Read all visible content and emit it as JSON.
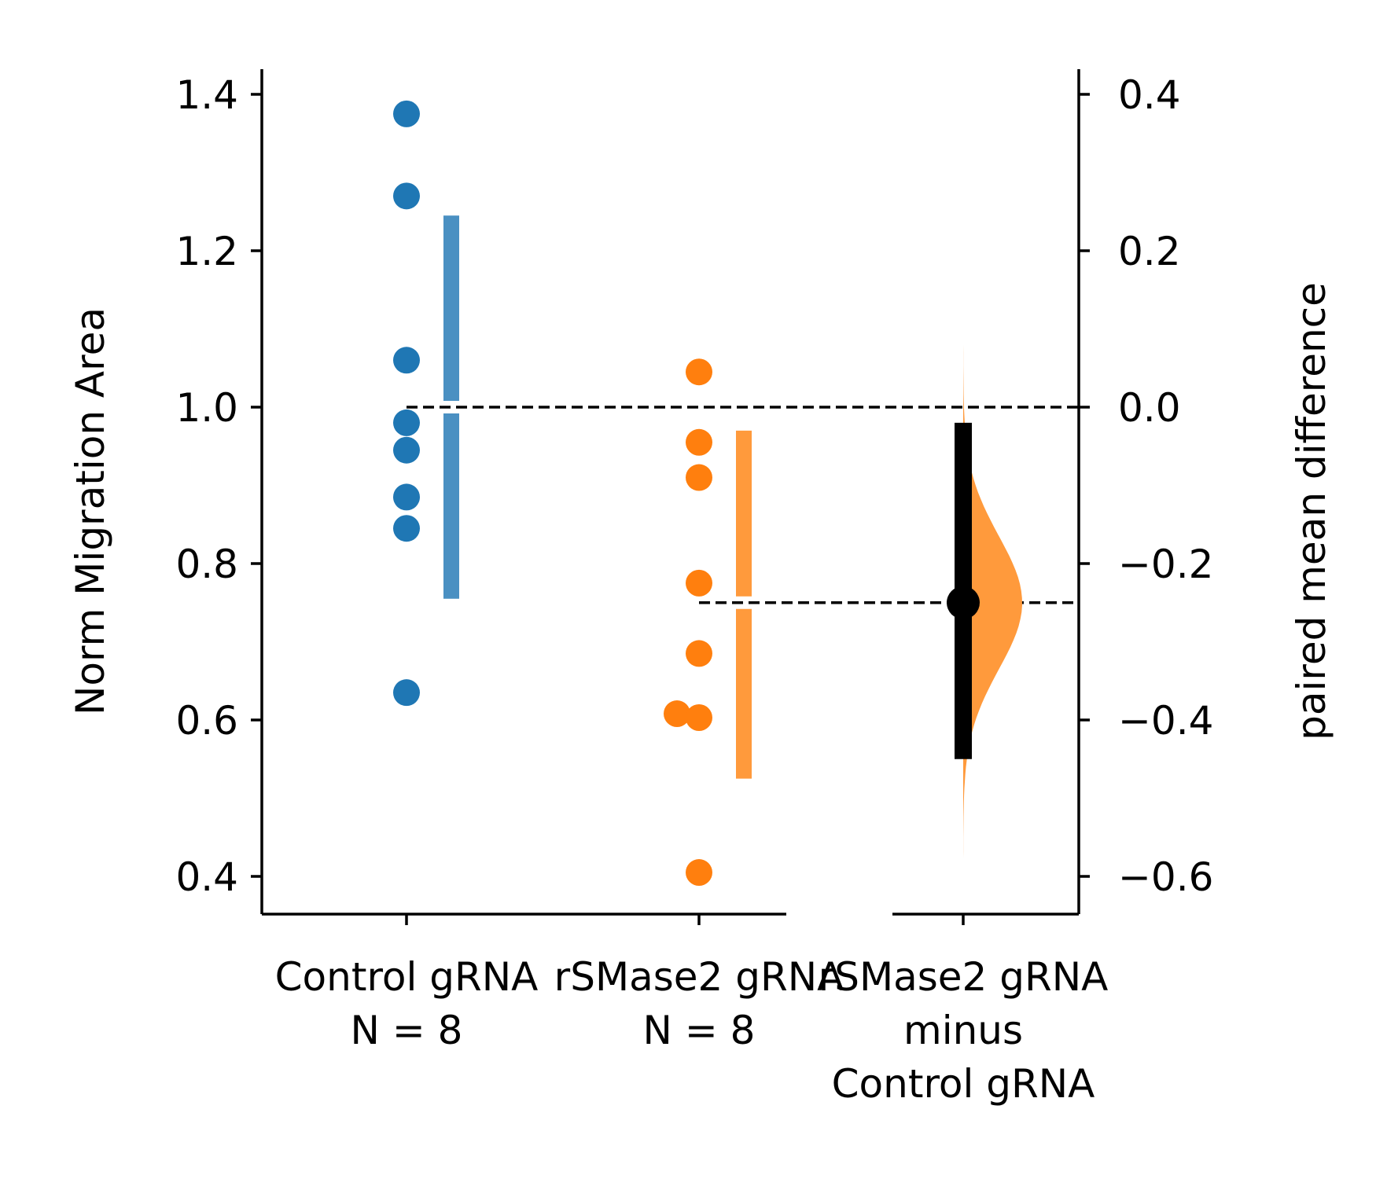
{
  "chart_data": {
    "type": "scatter",
    "subtype": "paired-estimation-plot",
    "left_axis": {
      "label": "Norm Migration Area",
      "ylim": [
        0.35,
        1.43
      ],
      "ticks": [
        0.4,
        0.6,
        0.8,
        1.0,
        1.2,
        1.4
      ],
      "tick_labels": [
        "0.4",
        "0.6",
        "0.8",
        "1.0",
        "1.2",
        "1.4"
      ]
    },
    "right_axis": {
      "label": "paired mean difference",
      "ylim": [
        -0.65,
        0.43
      ],
      "ticks": [
        -0.6,
        -0.4,
        -0.2,
        0.0,
        0.2,
        0.4
      ],
      "tick_labels": [
        "−0.6",
        "−0.4",
        "−0.2",
        "0.0",
        "0.2",
        "0.4"
      ]
    },
    "groups": [
      {
        "name": "Control gRNA",
        "n_label": "N = 8",
        "color": "#1f77b4",
        "bar_color": "#4a90c2",
        "values": [
          1.375,
          1.27,
          1.06,
          0.98,
          0.945,
          0.885,
          0.845,
          0.635
        ],
        "offsets": [
          0,
          0,
          0,
          0,
          0,
          0,
          0,
          0
        ],
        "mean": 1.0,
        "sd_range": [
          0.755,
          1.245
        ]
      },
      {
        "name": "rSMase2 gRNA",
        "n_label": "N = 8",
        "color": "#ff7f0e",
        "bar_color": "#ff9a3c",
        "values": [
          1.045,
          0.955,
          0.91,
          0.775,
          0.685,
          0.608,
          0.603,
          0.405
        ],
        "offsets": [
          0,
          0,
          0,
          0,
          0,
          -1,
          0,
          0
        ],
        "mean": 0.75,
        "sd_range": [
          0.525,
          0.97
        ]
      }
    ],
    "delta": {
      "label_lines": [
        "rSMase2 gRNA",
        "minus",
        "Control gRNA"
      ],
      "color": "#ff9a3c",
      "point_estimate": -0.25,
      "ci": [
        -0.45,
        -0.02
      ],
      "distribution_range": [
        -0.64,
        0.08
      ]
    },
    "reference_lines": {
      "control_mean": 1.0,
      "test_mean": 0.75
    },
    "grid": false,
    "legend": "none"
  }
}
